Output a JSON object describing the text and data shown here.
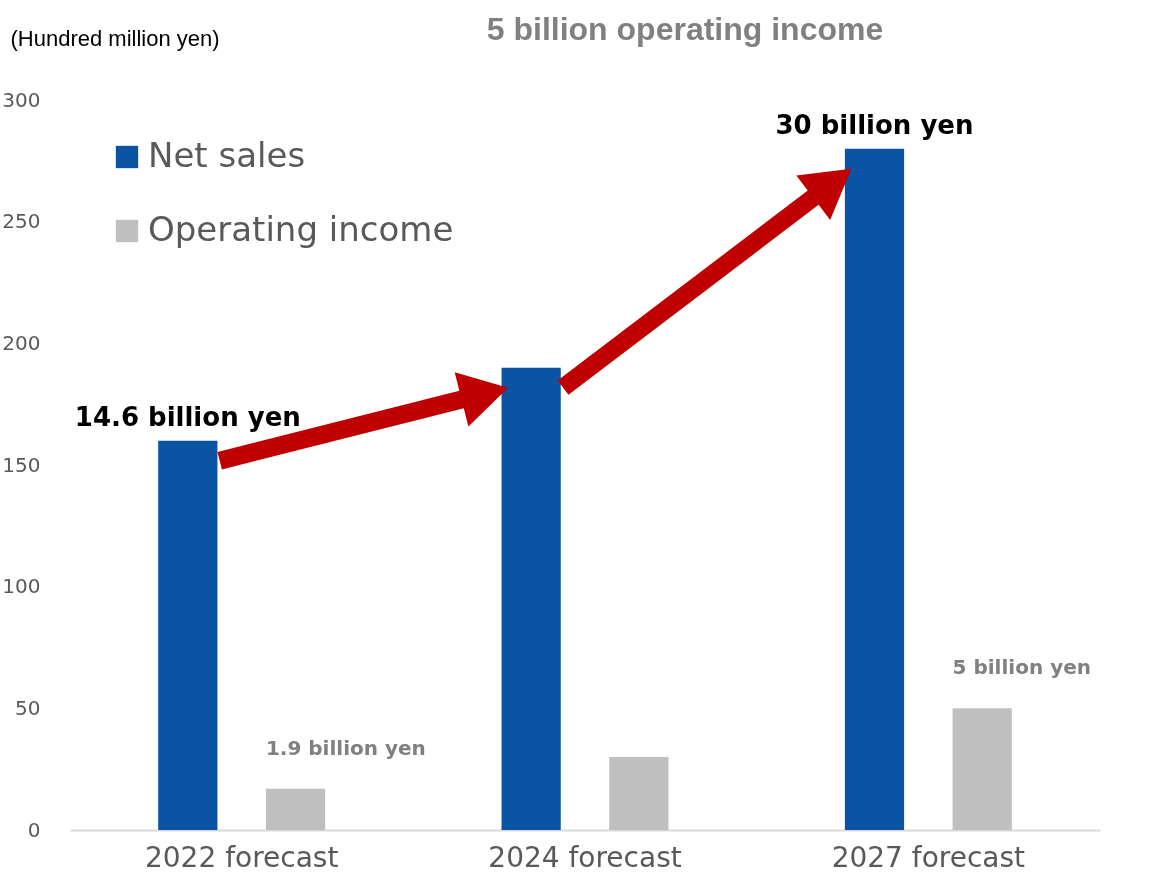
{
  "chart_data": {
    "type": "bar",
    "title": "5 billion operating income",
    "ylabel": "(Hundred million yen)",
    "categories": [
      "2022 forecast",
      "2024 forecast",
      "2027 forecast"
    ],
    "series": [
      {
        "name": "Net sales",
        "color": "#0b53a3",
        "values": [
          160,
          190,
          280
        ]
      },
      {
        "name": "Operating income",
        "color": "#bfbfbf",
        "values": [
          17,
          30,
          50
        ]
      }
    ],
    "annotations": [
      "14.6 billion yen",
      "1.9 billion yen",
      "30 billion yen",
      "5 billion yen"
    ],
    "ylim": [
      0,
      300
    ],
    "yticks": [
      0,
      50,
      100,
      150,
      200,
      250,
      300
    ],
    "grid": false,
    "legend": "top left"
  }
}
